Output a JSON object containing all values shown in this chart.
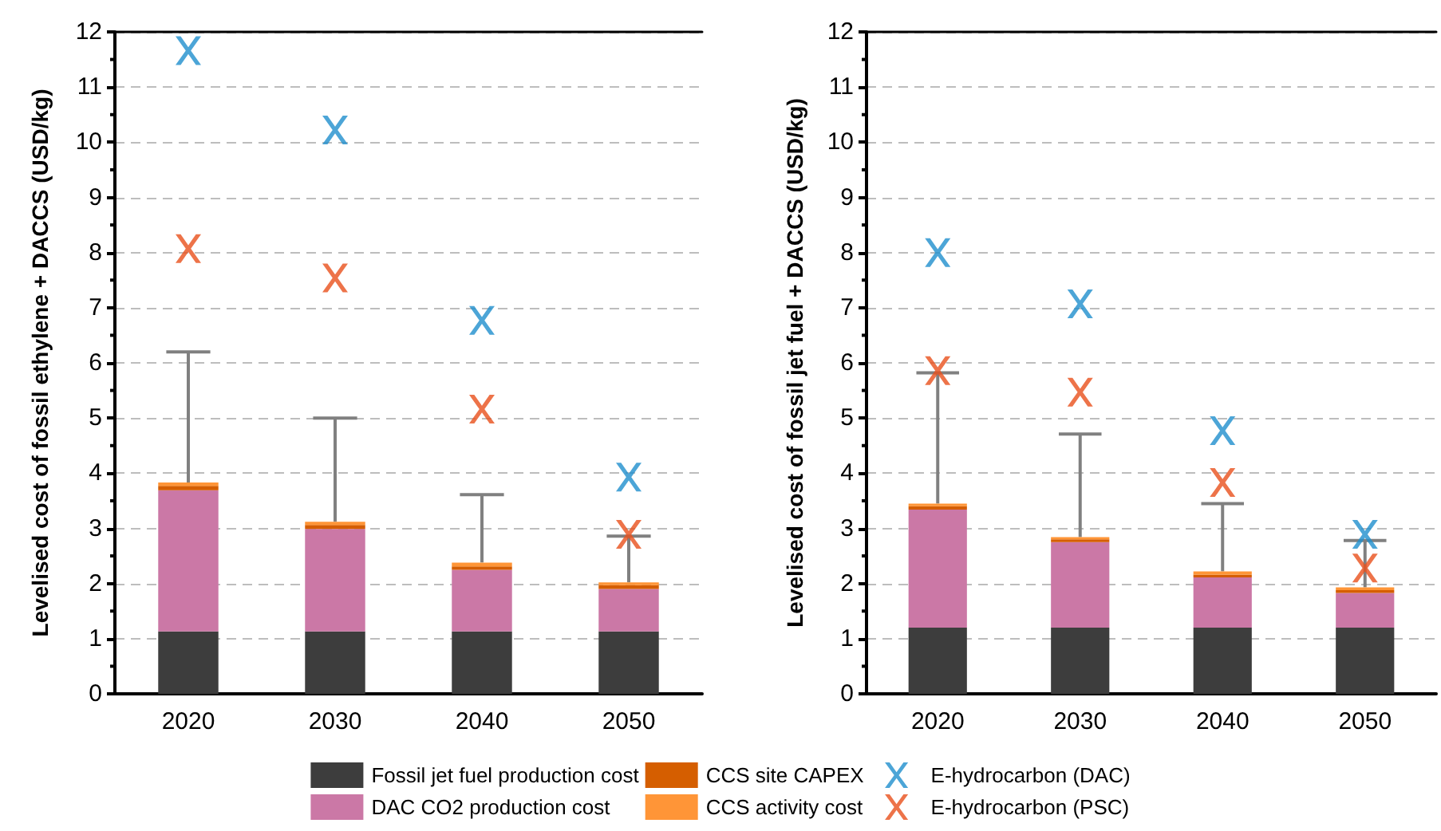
{
  "chart_data": [
    {
      "type": "bar",
      "stacked": true,
      "ylabel": "Levelised cost of fossil ethylene + DACCS (USD/kg)",
      "categories": [
        "2020",
        "2030",
        "2040",
        "2050"
      ],
      "ylim": [
        0,
        12
      ],
      "yticks": [
        0,
        1,
        2,
        3,
        4,
        5,
        6,
        7,
        8,
        9,
        10,
        11,
        12
      ],
      "grid": "y",
      "legend": "bottom",
      "marker": "cross",
      "series": [
        {
          "name": "Fossil jet fuel production cost",
          "color": "#3d3d3d",
          "values": [
            1.13,
            1.13,
            1.13,
            1.13
          ]
        },
        {
          "name": "DAC CO2 production cost",
          "color": "#cb78a6",
          "values": [
            2.56,
            1.86,
            1.12,
            0.77
          ]
        },
        {
          "name": "CCS site CAPEX",
          "color": "#d55e00",
          "values": [
            0.08,
            0.07,
            0.06,
            0.07
          ]
        },
        {
          "name": "CCS activity cost",
          "color": "#ff9537",
          "values": [
            0.06,
            0.06,
            0.07,
            0.05
          ],
          "errors": [
            [
              3.83,
              6.2
            ],
            [
              3.12,
              5.0
            ],
            [
              2.38,
              3.61
            ],
            [
              2.02,
              2.86
            ]
          ]
        },
        {
          "name": "E-hydrocarbon (DAC)",
          "type": "scatter",
          "color": "#1f8ecd",
          "values": [
            11.66,
            10.22,
            6.77,
            3.93
          ]
        },
        {
          "name": "E-hydrocarbon (PSC)",
          "type": "scatter",
          "color": "#e8501b",
          "values": [
            8.07,
            7.54,
            5.16,
            2.89
          ]
        }
      ]
    },
    {
      "type": "bar",
      "stacked": true,
      "ylabel": "Levelised cost of fossil jet fuel + DACCS (USD/kg)",
      "categories": [
        "2020",
        "2030",
        "2040",
        "2050"
      ],
      "ylim": [
        0,
        12
      ],
      "yticks": [
        0,
        1,
        2,
        3,
        4,
        5,
        6,
        7,
        8,
        9,
        10,
        11,
        12
      ],
      "grid": "y",
      "marker": "cross",
      "series": [
        {
          "color": "#3d3d3d",
          "values": [
            1.2,
            1.2,
            1.2,
            1.2
          ]
        },
        {
          "color": "#cb78a6",
          "values": [
            2.14,
            1.55,
            0.91,
            0.63
          ]
        },
        {
          "color": "#d55e00",
          "values": [
            0.06,
            0.05,
            0.05,
            0.05
          ]
        },
        {
          "color": "#ff9537",
          "values": [
            0.05,
            0.04,
            0.06,
            0.05
          ],
          "errors": [
            [
              3.45,
              5.82
            ],
            [
              2.84,
              4.71
            ],
            [
              2.22,
              3.45
            ],
            [
              1.93,
              2.78
            ]
          ]
        },
        {
          "type": "scatter",
          "color": "#1f8ecd",
          "values": [
            8.0,
            7.07,
            4.77,
            2.89
          ]
        },
        {
          "type": "scatter",
          "color": "#e8501b",
          "values": [
            5.86,
            5.47,
            3.83,
            2.28
          ]
        }
      ]
    }
  ]
}
